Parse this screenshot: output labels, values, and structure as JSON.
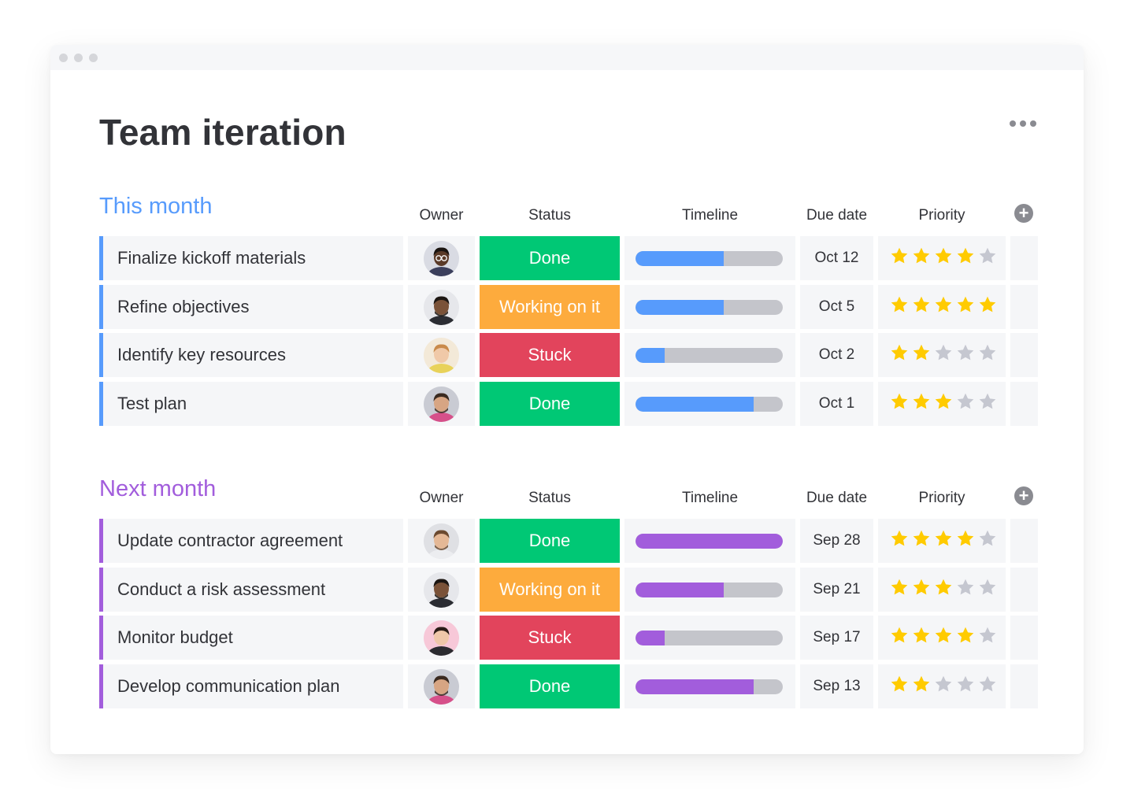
{
  "window": {
    "title": "Team iteration",
    "menu_icon": "more-horizontal-icon"
  },
  "colors": {
    "done": "#00c875",
    "working": "#fdab3d",
    "stuck": "#e2445c",
    "this_month": "#579bfc",
    "next_month": "#a25ddc",
    "star_on": "#ffcb00",
    "star_off": "#c5c7d0"
  },
  "groups": [
    {
      "title": "This month",
      "color": "#579bfc",
      "columns": [
        "Owner",
        "Status",
        "Timeline",
        "Due date",
        "Priority"
      ],
      "add_icon": "plus-circle-icon",
      "rows": [
        {
          "name": "Finalize kickoff materials",
          "owner": "avatar-1",
          "status": "Done",
          "status_color": "#00c875",
          "timeline_progress": 0.6,
          "due": "Oct 12",
          "priority": 4
        },
        {
          "name": "Refine objectives",
          "owner": "avatar-2",
          "status": "Working on it",
          "status_color": "#fdab3d",
          "timeline_progress": 0.6,
          "due": "Oct 5",
          "priority": 5
        },
        {
          "name": "Identify key resources",
          "owner": "avatar-3",
          "status": "Stuck",
          "status_color": "#e2445c",
          "timeline_progress": 0.2,
          "due": "Oct 2",
          "priority": 2
        },
        {
          "name": "Test plan",
          "owner": "avatar-4",
          "status": "Done",
          "status_color": "#00c875",
          "timeline_progress": 0.8,
          "due": "Oct 1",
          "priority": 3
        }
      ]
    },
    {
      "title": "Next month",
      "color": "#a25ddc",
      "columns": [
        "Owner",
        "Status",
        "Timeline",
        "Due date",
        "Priority"
      ],
      "add_icon": "plus-circle-icon",
      "rows": [
        {
          "name": "Update contractor agreement",
          "owner": "avatar-5",
          "status": "Done",
          "status_color": "#00c875",
          "timeline_progress": 1.0,
          "due": "Sep 28",
          "priority": 4
        },
        {
          "name": "Conduct a risk assessment",
          "owner": "avatar-2",
          "status": "Working on it",
          "status_color": "#fdab3d",
          "timeline_progress": 0.6,
          "due": "Sep 21",
          "priority": 3
        },
        {
          "name": "Monitor budget",
          "owner": "avatar-6",
          "status": "Stuck",
          "status_color": "#e2445c",
          "timeline_progress": 0.2,
          "due": "Sep 17",
          "priority": 4
        },
        {
          "name": "Develop communication plan",
          "owner": "avatar-4",
          "status": "Done",
          "status_color": "#00c875",
          "timeline_progress": 0.8,
          "due": "Sep 13",
          "priority": 2
        }
      ]
    }
  ],
  "priority_max": 5
}
